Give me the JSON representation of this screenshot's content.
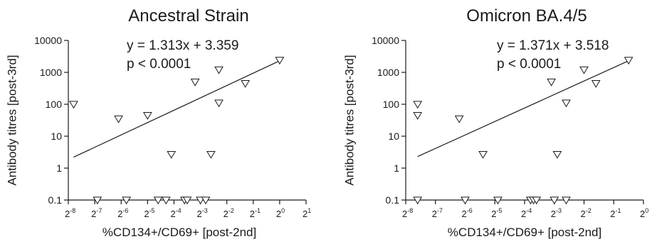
{
  "chart_data": [
    {
      "type": "scatter",
      "title": "Ancestral Strain",
      "xlabel": "%CD134+/CD69+ [post-2nd]",
      "ylabel": "Antibody titres [post-3rd]",
      "x_scale": "log2",
      "y_scale": "log10",
      "xlim": [
        -8,
        1
      ],
      "ylim": [
        0.1,
        10000
      ],
      "x_ticks": [
        -8,
        -7,
        -6,
        -5,
        -4,
        -3,
        -2,
        -1,
        0,
        1
      ],
      "x_tick_base": "2",
      "y_ticks": [
        {
          "value": 0.1,
          "label": "0.1"
        },
        {
          "value": 1,
          "label": "1"
        },
        {
          "value": 10,
          "label": "10"
        },
        {
          "value": 100,
          "label": "100"
        },
        {
          "value": 1000,
          "label": "1000"
        },
        {
          "value": 10000,
          "label": "10000"
        }
      ],
      "annotations": [
        "y = 1.313x + 3.359",
        "p < 0.0001"
      ],
      "fit": {
        "x": [
          -7.8,
          0
        ],
        "y": [
          2.2,
          2300
        ]
      },
      "points": [
        {
          "x": -7.8,
          "y": 100
        },
        {
          "x": -6.9,
          "y": 0.1
        },
        {
          "x": -6.1,
          "y": 35
        },
        {
          "x": -5.8,
          "y": 0.1
        },
        {
          "x": -5.0,
          "y": 45
        },
        {
          "x": -4.6,
          "y": 0.1
        },
        {
          "x": -4.3,
          "y": 0.1
        },
        {
          "x": -4.1,
          "y": 2.7
        },
        {
          "x": -3.6,
          "y": 0.1
        },
        {
          "x": -3.5,
          "y": 0.1
        },
        {
          "x": -3.2,
          "y": 500
        },
        {
          "x": -3.0,
          "y": 0.1
        },
        {
          "x": -2.8,
          "y": 0.1
        },
        {
          "x": -2.6,
          "y": 2.7
        },
        {
          "x": -2.3,
          "y": 1200
        },
        {
          "x": -2.3,
          "y": 110
        },
        {
          "x": -1.3,
          "y": 450
        },
        {
          "x": 0.0,
          "y": 2400
        }
      ]
    },
    {
      "type": "scatter",
      "title": "Omicron BA.4/5",
      "xlabel": "%CD134+/CD69+ [post-2nd]",
      "ylabel": "Antibody titres [post-3rd]",
      "x_scale": "log2",
      "y_scale": "log10",
      "xlim": [
        -8,
        0
      ],
      "ylim": [
        0.1,
        10000
      ],
      "x_ticks": [
        -8,
        -7,
        -6,
        -5,
        -4,
        -3,
        -2,
        -1,
        0
      ],
      "x_tick_base": "2",
      "y_ticks": [
        {
          "value": 0.1,
          "label": "0.1"
        },
        {
          "value": 1,
          "label": "1"
        },
        {
          "value": 10,
          "label": "10"
        },
        {
          "value": 100,
          "label": "100"
        },
        {
          "value": 1000,
          "label": "1000"
        },
        {
          "value": 10000,
          "label": "10000"
        }
      ],
      "annotations": [
        "y = 1.371x + 3.518",
        "p < 0.0001"
      ],
      "fit": {
        "x": [
          -7.6,
          -0.5
        ],
        "y": [
          2.3,
          2300
        ]
      },
      "points": [
        {
          "x": -7.6,
          "y": 100
        },
        {
          "x": -7.6,
          "y": 45
        },
        {
          "x": -7.6,
          "y": 0.1
        },
        {
          "x": -6.2,
          "y": 35
        },
        {
          "x": -6.0,
          "y": 0.1
        },
        {
          "x": -5.4,
          "y": 2.7
        },
        {
          "x": -4.9,
          "y": 0.1
        },
        {
          "x": -3.8,
          "y": 0.1
        },
        {
          "x": -3.7,
          "y": 0.1
        },
        {
          "x": -3.6,
          "y": 0.1
        },
        {
          "x": -3.1,
          "y": 500
        },
        {
          "x": -3.0,
          "y": 0.1
        },
        {
          "x": -2.9,
          "y": 2.7
        },
        {
          "x": -2.6,
          "y": 110
        },
        {
          "x": -2.6,
          "y": 0.1
        },
        {
          "x": -2.0,
          "y": 1200
        },
        {
          "x": -1.6,
          "y": 450
        },
        {
          "x": -0.5,
          "y": 2400
        }
      ]
    }
  ]
}
